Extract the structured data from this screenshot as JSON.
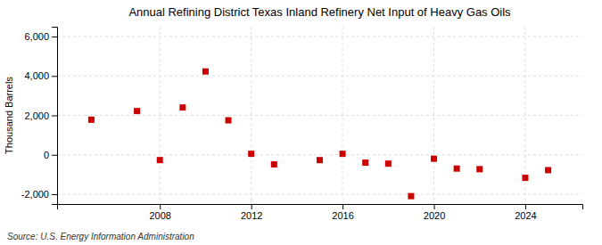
{
  "chart_data": {
    "type": "scatter",
    "title": "Annual Refining District Texas Inland Refinery Net Input of Heavy Gas Oils",
    "y_label": "Thousand Barrels",
    "annotations": [
      "Source: U.S. Energy Information Administration"
    ],
    "x": [
      2005,
      2007,
      2008,
      2009,
      2010,
      2011,
      2012,
      2013,
      2015,
      2016,
      2017,
      2018,
      2019,
      2020,
      2021,
      2022,
      2024,
      2025
    ],
    "values": [
      1780,
      2220,
      -270,
      2400,
      4230,
      1750,
      50,
      -490,
      -270,
      50,
      -400,
      -450,
      -2100,
      -200,
      -700,
      -730,
      -1170,
      -780
    ],
    "color": "#cc0000",
    "marker": "square",
    "xlim": [
      2003.5,
      2026.5
    ],
    "xticks": [
      2008,
      2012,
      2016,
      2020,
      2024
    ],
    "ylim": [
      -2500,
      6500
    ],
    "yticks": [
      {
        "value": -2000,
        "label": "-2,000"
      },
      0,
      {
        "value": 2000,
        "label": "2,000"
      },
      {
        "value": 4000,
        "label": "4,000"
      },
      {
        "value": 6000,
        "label": "6,000"
      }
    ],
    "grid": true
  }
}
